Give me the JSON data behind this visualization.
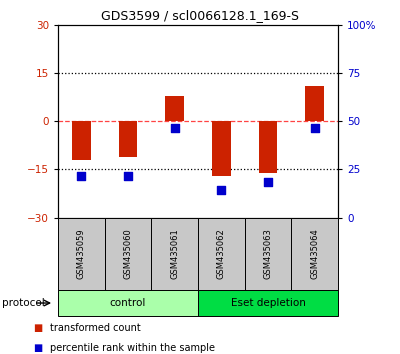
{
  "title": "GDS3599 / scl0066128.1_169-S",
  "categories": [
    "GSM435059",
    "GSM435060",
    "GSM435061",
    "GSM435062",
    "GSM435063",
    "GSM435064"
  ],
  "red_values": [
    -12.0,
    -11.0,
    8.0,
    -17.0,
    -16.0,
    11.0
  ],
  "blue_values_left": [
    -17.0,
    -17.0,
    -2.0,
    -21.5,
    -19.0,
    -2.0
  ],
  "ylim_left": [
    -30,
    30
  ],
  "ylim_right": [
    0,
    100
  ],
  "yticks_left": [
    -30,
    -15,
    0,
    15,
    30
  ],
  "yticks_right": [
    0,
    25,
    50,
    75,
    100
  ],
  "groups": [
    {
      "label": "control",
      "indices": [
        0,
        1,
        2
      ],
      "color": "#90EE90"
    },
    {
      "label": "Eset depletion",
      "indices": [
        3,
        4,
        5
      ],
      "color": "#00CC44"
    }
  ],
  "protocol_label": "protocol",
  "red_color": "#CC2200",
  "blue_color": "#0000CC",
  "dashed_line_color": "#FF4444",
  "dotted_line_color": "#000000",
  "bar_width": 0.4,
  "legend_red": "transformed count",
  "legend_blue": "percentile rank within the sample",
  "background_color": "#FFFFFF",
  "plot_bg": "#FFFFFF",
  "tick_label_bg": "#C8C8C8",
  "group_light_green": "#AAFFAA",
  "group_dark_green": "#00DD44"
}
